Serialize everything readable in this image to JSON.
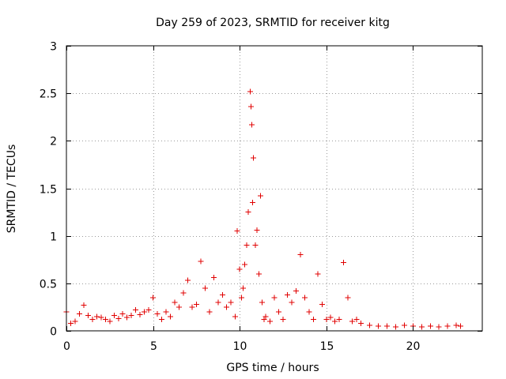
{
  "chart_data": {
    "type": "scatter",
    "title": "Day 259 of 2023, SRMTID for receiver kitg",
    "xlabel": "GPS time / hours",
    "ylabel": "SRMTID / TECUs",
    "xlim": [
      0,
      24
    ],
    "ylim": [
      0,
      3
    ],
    "xticks": [
      "0",
      "5",
      "10",
      "15",
      "20"
    ],
    "yticks": [
      "0",
      "0.5",
      "1",
      "1.5",
      "2",
      "2.5",
      "3"
    ],
    "grid": true,
    "marker": "plus",
    "color": "#e00000",
    "series": [
      {
        "x": [
          0.0,
          0.25,
          0.5,
          0.75,
          1.0,
          1.25,
          1.5,
          1.75,
          2.0,
          2.25,
          2.5,
          2.75,
          3.0,
          3.25,
          3.5,
          3.75,
          4.0,
          4.25,
          4.5,
          4.75,
          5.0,
          5.25,
          5.5,
          5.75,
          6.0,
          6.25,
          6.5,
          6.75,
          7.0,
          7.25,
          7.5,
          7.75,
          8.0,
          8.25,
          8.5,
          8.75,
          9.0,
          9.25,
          9.5,
          9.75,
          9.85,
          10.0,
          10.1,
          10.2,
          10.3,
          10.4,
          10.5,
          10.6,
          10.65,
          10.7,
          10.75,
          10.8,
          10.9,
          11.0,
          11.1,
          11.2,
          11.3,
          11.4,
          11.5,
          11.75,
          12.0,
          12.25,
          12.5,
          12.75,
          13.0,
          13.25,
          13.5,
          13.75,
          14.0,
          14.25,
          14.5,
          14.75,
          15.0,
          15.25,
          15.5,
          15.75,
          16.0,
          16.25,
          16.5,
          16.75,
          17.0,
          17.5,
          18.0,
          18.5,
          19.0,
          19.5,
          20.0,
          20.5,
          21.0,
          21.5,
          22.0,
          22.5,
          22.75
        ],
        "y": [
          0.2,
          0.08,
          0.1,
          0.18,
          0.27,
          0.16,
          0.12,
          0.15,
          0.14,
          0.12,
          0.1,
          0.16,
          0.13,
          0.18,
          0.14,
          0.16,
          0.22,
          0.17,
          0.2,
          0.22,
          0.35,
          0.18,
          0.12,
          0.2,
          0.15,
          0.3,
          0.25,
          0.4,
          0.53,
          0.25,
          0.28,
          0.73,
          0.45,
          0.2,
          0.56,
          0.3,
          0.38,
          0.25,
          0.3,
          0.15,
          1.05,
          0.65,
          0.35,
          0.45,
          0.7,
          0.9,
          1.25,
          2.52,
          2.36,
          2.17,
          1.35,
          1.82,
          0.9,
          1.06,
          0.6,
          1.42,
          0.3,
          0.12,
          0.15,
          0.1,
          0.35,
          0.2,
          0.12,
          0.38,
          0.3,
          0.42,
          0.8,
          0.35,
          0.2,
          0.12,
          0.6,
          0.28,
          0.12,
          0.14,
          0.1,
          0.12,
          0.72,
          0.35,
          0.1,
          0.12,
          0.08,
          0.06,
          0.05,
          0.05,
          0.04,
          0.06,
          0.05,
          0.04,
          0.05,
          0.04,
          0.05,
          0.06,
          0.05
        ]
      }
    ]
  }
}
